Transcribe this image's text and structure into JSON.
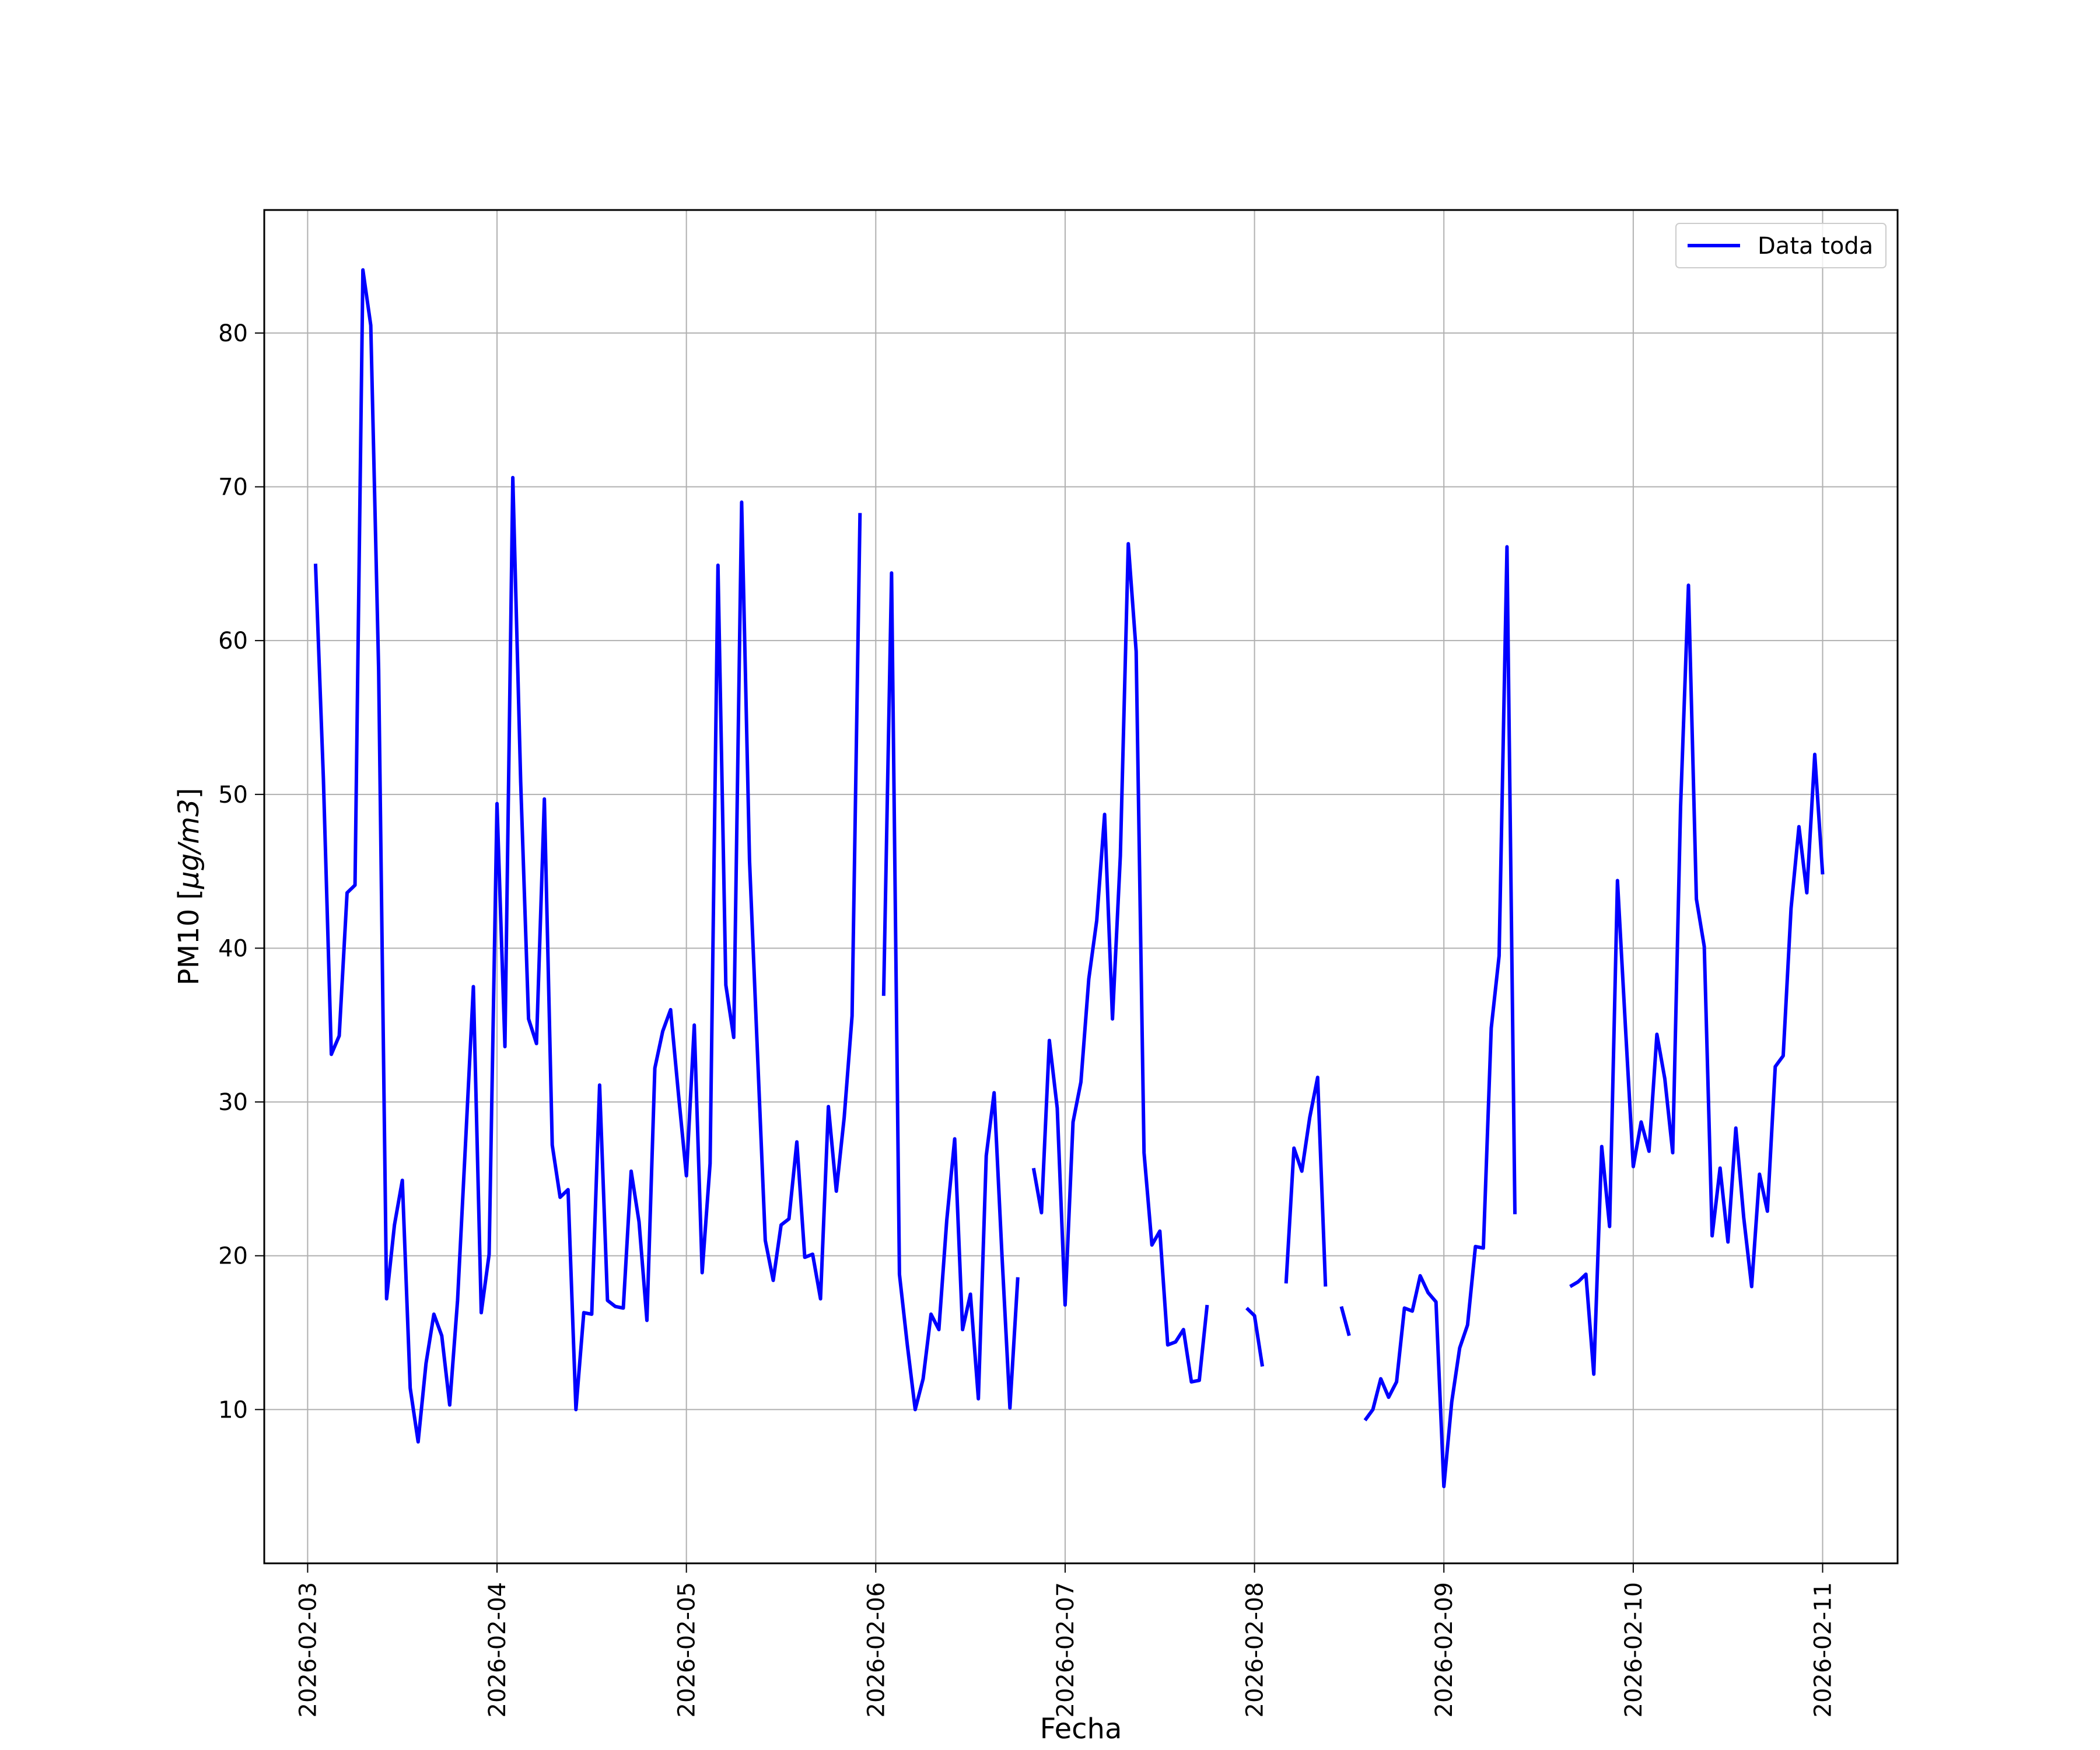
{
  "chart_data": {
    "type": "line",
    "xlabel": "Fecha",
    "ylabel_main": "PM10 [",
    "ylabel_unit": "μg/m3",
    "ylabel_close": "]",
    "ylim": [
      0,
      88
    ],
    "xlim": [
      "2026-02-02 18:30",
      "2026-02-11 09:30"
    ],
    "grid": true,
    "legend_position": "upper right",
    "x_ticks": [
      "2026-02-03",
      "2026-02-04",
      "2026-02-05",
      "2026-02-06",
      "2026-02-07",
      "2026-02-08",
      "2026-02-09",
      "2026-02-10",
      "2026-02-11"
    ],
    "y_ticks": [
      "10",
      "20",
      "30",
      "40",
      "50",
      "60",
      "70",
      "80"
    ],
    "series": [
      {
        "name": "Data toda",
        "color": "#0000ff",
        "segments": [
          [
            [
              "2026-02-03 01:00",
              65.0
            ],
            [
              "2026-02-03 02:00",
              51.0
            ],
            [
              "2026-02-03 03:00",
              33.1
            ],
            [
              "2026-02-03 04:00",
              34.3
            ],
            [
              "2026-02-03 05:00",
              43.6
            ],
            [
              "2026-02-03 06:00",
              44.1
            ],
            [
              "2026-02-03 07:00",
              84.1
            ],
            [
              "2026-02-03 08:00",
              80.5
            ],
            [
              "2026-02-03 09:00",
              58.1
            ],
            [
              "2026-02-03 10:00",
              17.2
            ],
            [
              "2026-02-03 11:00",
              22.0
            ],
            [
              "2026-02-03 12:00",
              24.9
            ],
            [
              "2026-02-03 13:00",
              11.4
            ],
            [
              "2026-02-03 14:00",
              7.9
            ],
            [
              "2026-02-03 15:00",
              13.0
            ],
            [
              "2026-02-03 16:00",
              16.2
            ],
            [
              "2026-02-03 17:00",
              14.8
            ],
            [
              "2026-02-03 18:00",
              10.3
            ],
            [
              "2026-02-03 19:00",
              17.1
            ],
            [
              "2026-02-03 20:00",
              27.2
            ],
            [
              "2026-02-03 21:00",
              37.5
            ],
            [
              "2026-02-03 22:00",
              16.3
            ],
            [
              "2026-02-03 23:00",
              20.1
            ],
            [
              "2026-02-04 00:00",
              49.4
            ],
            [
              "2026-02-04 01:00",
              33.6
            ],
            [
              "2026-02-04 02:00",
              70.6
            ],
            [
              "2026-02-04 03:00",
              50.8
            ],
            [
              "2026-02-04 04:00",
              35.4
            ],
            [
              "2026-02-04 05:00",
              33.8
            ],
            [
              "2026-02-04 06:00",
              49.7
            ],
            [
              "2026-02-04 07:00",
              27.2
            ],
            [
              "2026-02-04 08:00",
              23.8
            ],
            [
              "2026-02-04 09:00",
              24.3
            ],
            [
              "2026-02-04 10:00",
              10.0
            ],
            [
              "2026-02-04 11:00",
              16.3
            ],
            [
              "2026-02-04 12:00",
              16.2
            ],
            [
              "2026-02-04 13:00",
              31.1
            ],
            [
              "2026-02-04 14:00",
              17.1
            ],
            [
              "2026-02-04 15:00",
              16.7
            ],
            [
              "2026-02-04 16:00",
              16.6
            ],
            [
              "2026-02-04 17:00",
              25.5
            ],
            [
              "2026-02-04 18:00",
              22.2
            ],
            [
              "2026-02-04 19:00",
              15.8
            ],
            [
              "2026-02-04 20:00",
              32.2
            ],
            [
              "2026-02-04 21:00",
              34.6
            ],
            [
              "2026-02-04 22:00",
              36.0
            ],
            [
              "2026-02-04 23:00",
              30.5
            ],
            [
              "2026-02-05 00:00",
              25.2
            ],
            [
              "2026-02-05 01:00",
              35.0
            ],
            [
              "2026-02-05 02:00",
              18.9
            ],
            [
              "2026-02-05 03:00",
              26.0
            ],
            [
              "2026-02-05 04:00",
              64.9
            ],
            [
              "2026-02-05 05:00",
              37.6
            ],
            [
              "2026-02-05 06:00",
              34.2
            ],
            [
              "2026-02-05 07:00",
              69.0
            ],
            [
              "2026-02-05 08:00",
              45.7
            ],
            [
              "2026-02-05 09:00",
              33.3
            ],
            [
              "2026-02-05 10:00",
              21.0
            ],
            [
              "2026-02-05 11:00",
              18.4
            ],
            [
              "2026-02-05 12:00",
              22.0
            ],
            [
              "2026-02-05 13:00",
              22.4
            ],
            [
              "2026-02-05 14:00",
              27.4
            ],
            [
              "2026-02-05 15:00",
              19.9
            ],
            [
              "2026-02-05 16:00",
              20.1
            ],
            [
              "2026-02-05 17:00",
              17.2
            ],
            [
              "2026-02-05 18:00",
              29.7
            ],
            [
              "2026-02-05 19:00",
              24.2
            ],
            [
              "2026-02-05 20:00",
              29.0
            ],
            [
              "2026-02-05 21:00",
              35.6
            ],
            [
              "2026-02-05 22:00",
              68.3
            ]
          ],
          [
            [
              "2026-02-06 01:00",
              36.9
            ],
            [
              "2026-02-06 02:00",
              64.4
            ],
            [
              "2026-02-06 03:00",
              18.8
            ],
            [
              "2026-02-06 04:00",
              14.2
            ],
            [
              "2026-02-06 05:00",
              10.0
            ],
            [
              "2026-02-06 06:00",
              12.0
            ],
            [
              "2026-02-06 07:00",
              16.2
            ],
            [
              "2026-02-06 08:00",
              15.2
            ],
            [
              "2026-02-06 09:00",
              22.3
            ],
            [
              "2026-02-06 10:00",
              27.6
            ],
            [
              "2026-02-06 11:00",
              15.2
            ],
            [
              "2026-02-06 12:00",
              17.5
            ],
            [
              "2026-02-06 13:00",
              10.7
            ],
            [
              "2026-02-06 14:00",
              26.5
            ],
            [
              "2026-02-06 15:00",
              30.6
            ],
            [
              "2026-02-06 16:00",
              20.0
            ],
            [
              "2026-02-06 17:00",
              10.1
            ],
            [
              "2026-02-06 18:00",
              18.6
            ]
          ],
          [
            [
              "2026-02-06 20:00",
              25.7
            ],
            [
              "2026-02-06 21:00",
              22.8
            ],
            [
              "2026-02-06 22:00",
              34.0
            ],
            [
              "2026-02-06 23:00",
              29.6
            ],
            [
              "2026-02-07 00:00",
              16.8
            ],
            [
              "2026-02-07 01:00",
              28.7
            ],
            [
              "2026-02-07 02:00",
              31.3
            ],
            [
              "2026-02-07 03:00",
              38.0
            ],
            [
              "2026-02-07 04:00",
              41.8
            ],
            [
              "2026-02-07 05:00",
              48.7
            ],
            [
              "2026-02-07 06:00",
              35.4
            ],
            [
              "2026-02-07 07:00",
              46.0
            ],
            [
              "2026-02-07 08:00",
              66.3
            ],
            [
              "2026-02-07 09:00",
              59.3
            ],
            [
              "2026-02-07 10:00",
              26.7
            ],
            [
              "2026-02-07 11:00",
              20.7
            ],
            [
              "2026-02-07 12:00",
              21.6
            ],
            [
              "2026-02-07 13:00",
              14.2
            ],
            [
              "2026-02-07 14:00",
              14.4
            ],
            [
              "2026-02-07 15:00",
              15.2
            ],
            [
              "2026-02-07 16:00",
              11.8
            ],
            [
              "2026-02-07 17:00",
              11.9
            ],
            [
              "2026-02-07 18:00",
              16.8
            ]
          ],
          [
            [
              "2026-02-07 23:00",
              16.6
            ],
            [
              "2026-02-08 00:00",
              16.1
            ],
            [
              "2026-02-08 01:00",
              12.8
            ]
          ],
          [
            [
              "2026-02-08 04:00",
              18.2
            ],
            [
              "2026-02-08 05:00",
              27.0
            ],
            [
              "2026-02-08 06:00",
              25.5
            ],
            [
              "2026-02-08 07:00",
              29.0
            ],
            [
              "2026-02-08 08:00",
              31.6
            ],
            [
              "2026-02-08 09:00",
              18.0
            ]
          ],
          [
            [
              "2026-02-08 11:00",
              16.7
            ],
            [
              "2026-02-08 12:00",
              14.8
            ]
          ],
          [
            [
              "2026-02-08 14:00",
              9.3
            ],
            [
              "2026-02-08 15:00",
              10.0
            ],
            [
              "2026-02-08 16:00",
              12.0
            ],
            [
              "2026-02-08 17:00",
              10.8
            ],
            [
              "2026-02-08 18:00",
              11.8
            ],
            [
              "2026-02-08 19:00",
              16.6
            ],
            [
              "2026-02-08 20:00",
              16.4
            ],
            [
              "2026-02-08 21:00",
              18.7
            ],
            [
              "2026-02-08 22:00",
              17.6
            ],
            [
              "2026-02-08 23:00",
              17.0
            ],
            [
              "2026-02-09 00:00",
              5.0
            ],
            [
              "2026-02-09 01:00",
              10.5
            ],
            [
              "2026-02-09 02:00",
              14.0
            ],
            [
              "2026-02-09 03:00",
              15.5
            ],
            [
              "2026-02-09 04:00",
              20.6
            ],
            [
              "2026-02-09 05:00",
              20.5
            ],
            [
              "2026-02-09 06:00",
              34.8
            ],
            [
              "2026-02-09 07:00",
              39.5
            ],
            [
              "2026-02-09 08:00",
              66.1
            ],
            [
              "2026-02-09 09:00",
              22.7
            ]
          ],
          [
            [
              "2026-02-09 16:00",
              18.0
            ],
            [
              "2026-02-09 17:00",
              18.3
            ],
            [
              "2026-02-09 18:00",
              18.8
            ],
            [
              "2026-02-09 19:00",
              12.3
            ],
            [
              "2026-02-09 20:00",
              27.1
            ],
            [
              "2026-02-09 21:00",
              21.9
            ],
            [
              "2026-02-09 22:00",
              44.4
            ],
            [
              "2026-02-09 23:00",
              35.0
            ],
            [
              "2026-02-10 00:00",
              25.8
            ],
            [
              "2026-02-10 01:00",
              28.7
            ],
            [
              "2026-02-10 02:00",
              26.8
            ],
            [
              "2026-02-10 03:00",
              34.4
            ],
            [
              "2026-02-10 04:00",
              31.5
            ],
            [
              "2026-02-10 05:00",
              26.7
            ],
            [
              "2026-02-10 06:00",
              49.2
            ],
            [
              "2026-02-10 07:00",
              63.6
            ],
            [
              "2026-02-10 08:00",
              43.2
            ],
            [
              "2026-02-10 09:00",
              40.1
            ],
            [
              "2026-02-10 10:00",
              21.3
            ],
            [
              "2026-02-10 11:00",
              25.7
            ],
            [
              "2026-02-10 12:00",
              20.9
            ],
            [
              "2026-02-10 13:00",
              28.3
            ],
            [
              "2026-02-10 14:00",
              22.5
            ],
            [
              "2026-02-10 15:00",
              18.0
            ],
            [
              "2026-02-10 16:00",
              25.3
            ],
            [
              "2026-02-10 17:00",
              22.9
            ],
            [
              "2026-02-10 18:00",
              32.3
            ],
            [
              "2026-02-10 19:00",
              33.0
            ],
            [
              "2026-02-10 20:00",
              42.6
            ],
            [
              "2026-02-10 21:00",
              47.9
            ],
            [
              "2026-02-10 22:00",
              43.6
            ],
            [
              "2026-02-10 23:00",
              52.6
            ],
            [
              "2026-02-11 00:00",
              44.8
            ]
          ]
        ]
      }
    ]
  }
}
